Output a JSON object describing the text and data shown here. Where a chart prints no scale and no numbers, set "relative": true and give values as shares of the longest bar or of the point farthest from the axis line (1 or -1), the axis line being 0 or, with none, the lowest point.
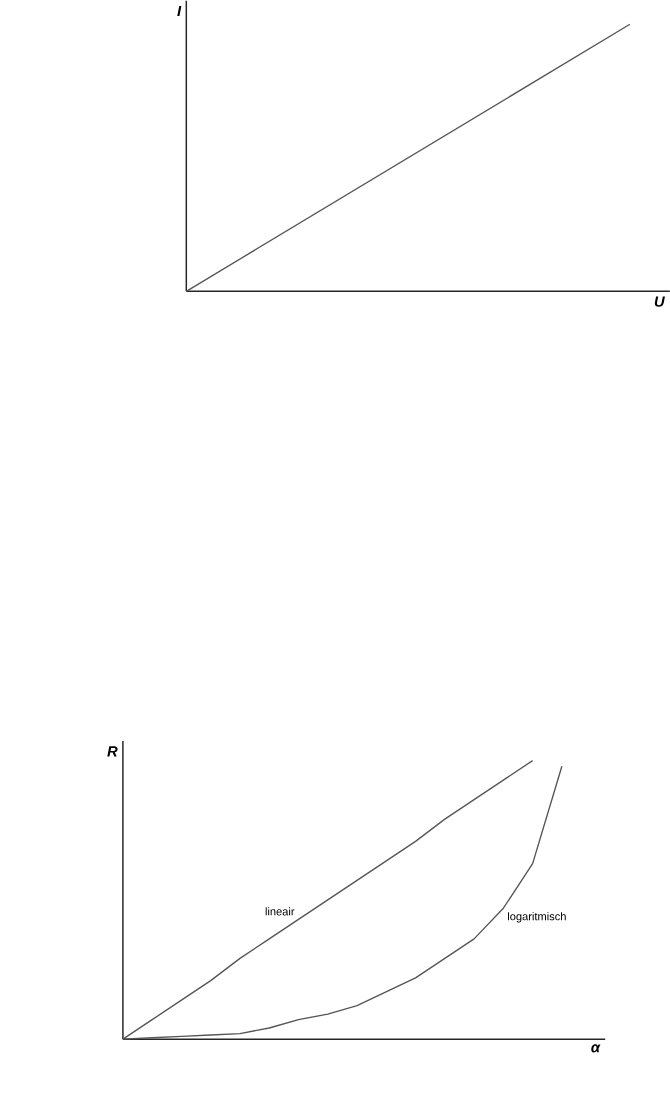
{
  "chart_data": [
    {
      "type": "line",
      "relative": true,
      "xlabel": "U",
      "ylabel": "I",
      "tick_labels": false,
      "categories": [
        null,
        null
      ],
      "series": [
        {
          "color": "#555555",
          "values": [
            0,
            1
          ]
        }
      ]
    },
    {
      "type": "line",
      "relative": true,
      "xlabel": "α",
      "ylabel": "R",
      "tick_labels": false,
      "categories": [
        null,
        null,
        null,
        null,
        null,
        null,
        null,
        null,
        null,
        null,
        null,
        null,
        null,
        null,
        null,
        null
      ],
      "series": [
        {
          "name": "lineair",
          "color": "#555555",
          "values": [
            0,
            0.07,
            0.14,
            0.21,
            0.29,
            0.36,
            0.43,
            0.5,
            0.57,
            0.64,
            0.71,
            0.79,
            0.86,
            0.93,
            1,
            null
          ]
        },
        {
          "name": "logaritmisch",
          "color": "#555555",
          "values": [
            0,
            0.005,
            0.01,
            0.015,
            0.02,
            0.04,
            0.07,
            0.09,
            0.12,
            0.17,
            0.22,
            0.29,
            0.36,
            0.47,
            0.63,
            0.98
          ]
        }
      ]
    }
  ]
}
